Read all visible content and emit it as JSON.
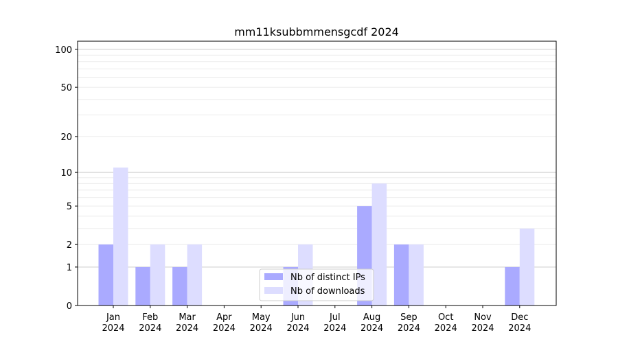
{
  "chart_data": {
    "type": "bar",
    "title": "mm11ksubbmmensgcdf 2024",
    "xlabel": "",
    "ylabel": "",
    "categories": [
      "Jan\n2024",
      "Feb\n2024",
      "Mar\n2024",
      "Apr\n2024",
      "May\n2024",
      "Jun\n2024",
      "Jul\n2024",
      "Aug\n2024",
      "Sep\n2024",
      "Oct\n2024",
      "Nov\n2024",
      "Dec\n2024"
    ],
    "series": [
      {
        "name": "Nb of distinct IPs",
        "color": "#aaaaff",
        "values": [
          2,
          1,
          1,
          0,
          0,
          1,
          0,
          5,
          2,
          0,
          0,
          1
        ]
      },
      {
        "name": "Nb of downloads",
        "color": "#ddddff",
        "values": [
          11,
          2,
          2,
          0,
          0,
          2,
          0,
          8,
          2,
          0,
          0,
          3
        ]
      }
    ],
    "yscale": "log(1+y)",
    "yticks": [
      0,
      1,
      2,
      5,
      10,
      20,
      50,
      100
    ],
    "ylim": [
      0,
      116
    ],
    "grid": true,
    "legend": "lower-center"
  }
}
